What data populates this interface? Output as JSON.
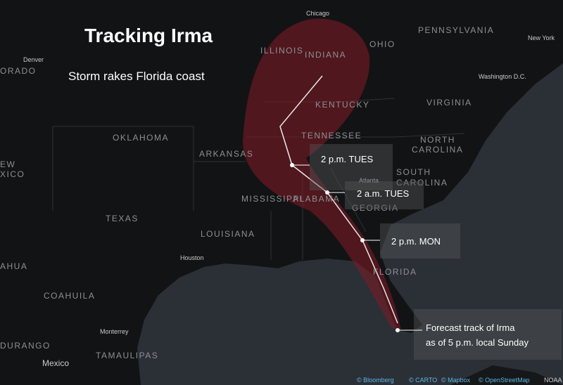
{
  "header": {
    "title": "Tracking Irma",
    "subtitle": "Storm rakes Florida coast"
  },
  "places": [
    "Chicago",
    "PENNSYLVANIA",
    "New York",
    "Denver",
    "ORADO",
    "ILLINOIS",
    "INDIANA",
    "OHIO",
    "Washington D.C.",
    "KENTUCKY",
    "VIRGINIA",
    "OKLAHOMA",
    "TENNESSEE",
    "NORTH",
    "CAROLINA",
    "ARKANSAS",
    "EW",
    "XICO",
    "SOUTH",
    "CAROLINA",
    "Atlanta",
    "MISSISSIPPI",
    "ALABAMA",
    "GEORGIA",
    "TEXAS",
    "LOUISIANA",
    "Houston",
    "FLORIDA",
    "AHUA",
    "COAHUILA",
    "Monterrey",
    "DURANGO",
    "TAMAULIPAS",
    "Mexico"
  ],
  "forecast": [
    "2 p.m. TUES",
    "2 a.m. TUES",
    "2 p.m. MON"
  ],
  "note": [
    "Forecast track of Irma",
    "as of 5 p.m. local Sunday"
  ],
  "attribution": [
    "© Bloomberg",
    "© CARTO",
    "© Mapbox",
    "© OpenStreetMap",
    "NOAA"
  ]
}
